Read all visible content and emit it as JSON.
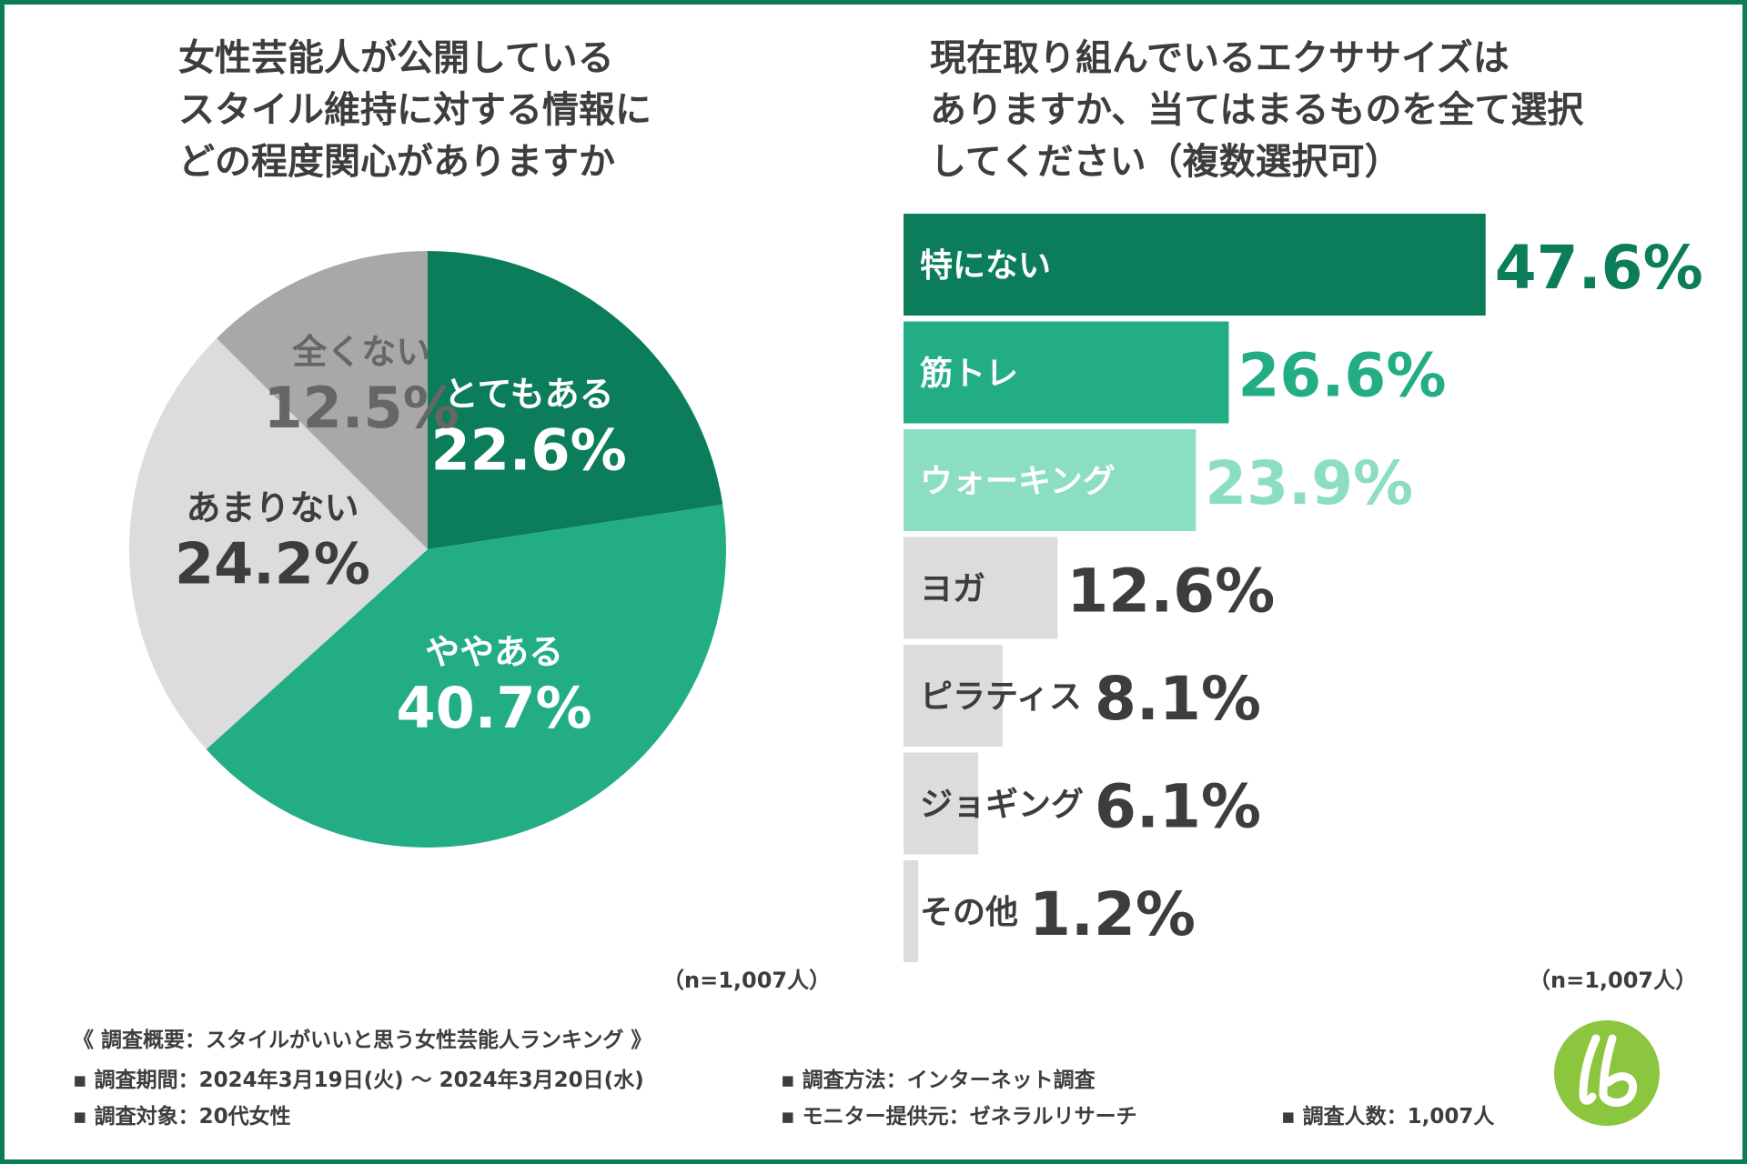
{
  "colors": {
    "border": "#0b7d5a",
    "dark_green": "#0b7d5a",
    "mid_green": "#22ad85",
    "light_green": "#8bddc3",
    "gray_dark": "#a8a8a8",
    "gray_light": "#dcdcdc",
    "text": "#3d3d3d",
    "logo": "#8cc63f"
  },
  "chart_data": [
    {
      "type": "pie",
      "title_lines": [
        "女性芸能人が公開している",
        "スタイル維持に対する情報に",
        "どの程度関心がありますか"
      ],
      "slices": [
        {
          "label": "とてもある",
          "value": 22.6,
          "value_label": "22.6%"
        },
        {
          "label": "ややある",
          "value": 40.7,
          "value_label": "40.7%"
        },
        {
          "label": "あまりない",
          "value": 24.2,
          "value_label": "24.2%"
        },
        {
          "label": "全くない",
          "value": 12.5,
          "value_label": "12.5%"
        }
      ],
      "note": "（n=1,007人）"
    },
    {
      "type": "bar",
      "orientation": "horizontal",
      "title_lines": [
        "現在取り組んでいるエクササイズは",
        "ありますか、当てはまるものを全て選択",
        "してください（複数選択可）"
      ],
      "categories": [
        "特にない",
        "筋トレ",
        "ウォーキング",
        "ヨガ",
        "ピラティス",
        "ジョギング",
        "その他"
      ],
      "values": [
        47.6,
        26.6,
        23.9,
        12.6,
        8.1,
        6.1,
        1.2
      ],
      "value_labels": [
        "47.6%",
        "26.6%",
        "23.9%",
        "12.6%",
        "8.1%",
        "6.1%",
        "1.2%"
      ],
      "xlim": [
        0,
        50
      ],
      "note": "（n=1,007人）"
    }
  ],
  "footer": {
    "heading": "《 調査概要：スタイルがいいと思う女性芸能人ランキング 》",
    "period": "▪ 調査期間：2024年3月19日(火) ～ 2024年3月20日(水)",
    "method": "▪ 調査方法：インターネット調査",
    "target": "▪ 調査対象：20代女性",
    "provider": "▪ モニター提供元：ゼネラルリサーチ",
    "count": "▪ 調査人数：1,007人"
  },
  "logo": {
    "icon": "lb-logo-icon",
    "text": "lb"
  }
}
